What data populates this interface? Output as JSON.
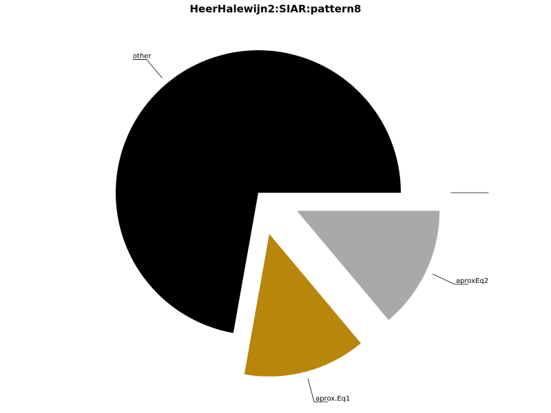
{
  "chart_data": {
    "type": "pie",
    "title": "HeerHalewijn2:SIAR:pattern8",
    "slices": [
      {
        "label": "other",
        "value": 72.2,
        "color": "#000000",
        "exploded": false
      },
      {
        "label": "aprox.Eq1",
        "value": 13.9,
        "color": "#b8860b",
        "exploded": true
      },
      {
        "label": "aproxEq2",
        "value": 13.9,
        "color": "#a9a9a9",
        "exploded": true
      },
      {
        "label": "",
        "value": 0.0,
        "color": "#ffffff",
        "exploded": true
      }
    ],
    "legend": false
  }
}
